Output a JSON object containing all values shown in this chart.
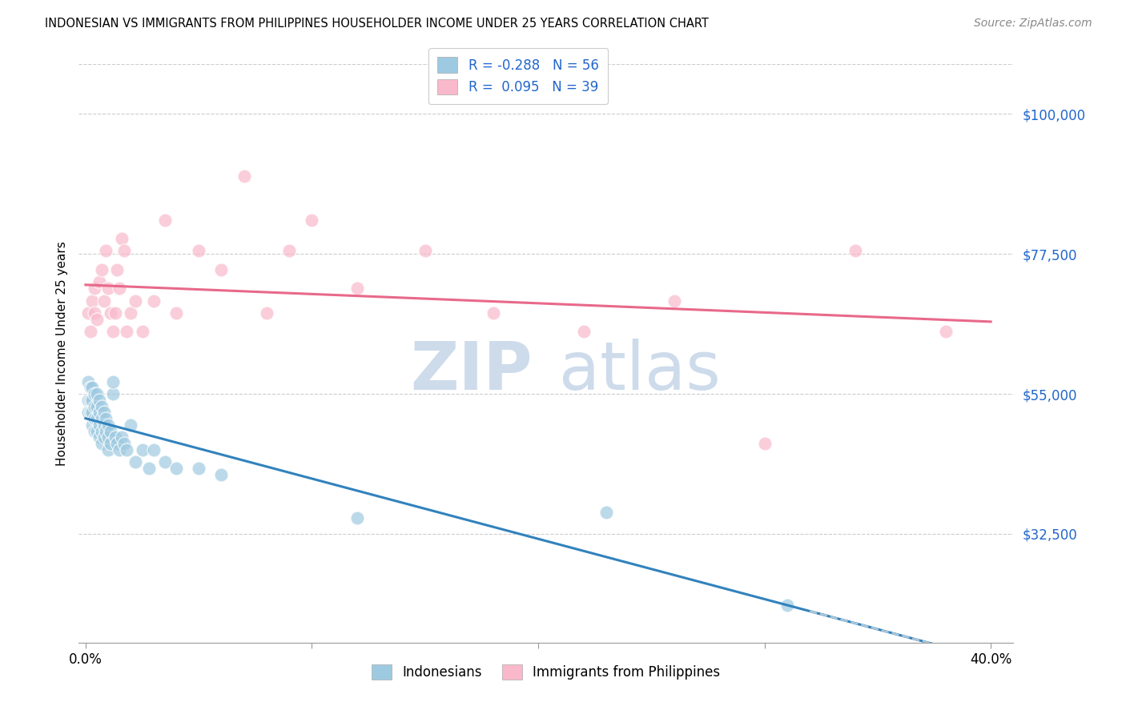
{
  "title": "INDONESIAN VS IMMIGRANTS FROM PHILIPPINES HOUSEHOLDER INCOME UNDER 25 YEARS CORRELATION CHART",
  "source": "Source: ZipAtlas.com",
  "ylabel": "Householder Income Under 25 years",
  "yticks": [
    32500,
    55000,
    77500,
    100000
  ],
  "ytick_labels": [
    "$32,500",
    "$55,000",
    "$77,500",
    "$100,000"
  ],
  "xmin": 0.0,
  "xmax": 0.4,
  "ymin": 15000,
  "ymax": 108000,
  "watermark_zip": "ZIP",
  "watermark_atlas": "atlas",
  "legend_labels": [
    "Indonesians",
    "Immigrants from Philippines"
  ],
  "r_indonesian": -0.288,
  "n_indonesian": 56,
  "r_philippines": 0.095,
  "n_philippines": 39,
  "color_indonesian": "#9ecae1",
  "color_philippines": "#f9b8cb",
  "color_indonesian_line": "#3182bd",
  "color_philippines_line": "#e8698a",
  "color_dashed": "#aec7d8",
  "indonesian_x": [
    0.001,
    0.001,
    0.001,
    0.002,
    0.002,
    0.002,
    0.003,
    0.003,
    0.003,
    0.003,
    0.004,
    0.004,
    0.004,
    0.004,
    0.005,
    0.005,
    0.005,
    0.005,
    0.006,
    0.006,
    0.006,
    0.006,
    0.007,
    0.007,
    0.007,
    0.007,
    0.008,
    0.008,
    0.008,
    0.009,
    0.009,
    0.01,
    0.01,
    0.01,
    0.011,
    0.011,
    0.012,
    0.012,
    0.013,
    0.014,
    0.015,
    0.016,
    0.017,
    0.018,
    0.02,
    0.022,
    0.025,
    0.028,
    0.03,
    0.035,
    0.04,
    0.05,
    0.06,
    0.12,
    0.23,
    0.31
  ],
  "indonesian_y": [
    57000,
    54000,
    52000,
    56000,
    54000,
    52000,
    56000,
    54000,
    52000,
    50000,
    55000,
    53000,
    51000,
    49000,
    55000,
    53000,
    51000,
    49000,
    54000,
    52000,
    50000,
    48000,
    53000,
    51000,
    49000,
    47000,
    52000,
    50000,
    48000,
    51000,
    49000,
    50000,
    48000,
    46000,
    49000,
    47000,
    55000,
    57000,
    48000,
    47000,
    46000,
    48000,
    47000,
    46000,
    50000,
    44000,
    46000,
    43000,
    46000,
    44000,
    43000,
    43000,
    42000,
    35000,
    36000,
    21000
  ],
  "philippines_x": [
    0.001,
    0.002,
    0.003,
    0.004,
    0.004,
    0.005,
    0.006,
    0.007,
    0.008,
    0.009,
    0.01,
    0.011,
    0.012,
    0.013,
    0.014,
    0.015,
    0.016,
    0.017,
    0.018,
    0.02,
    0.022,
    0.025,
    0.03,
    0.035,
    0.04,
    0.05,
    0.06,
    0.07,
    0.08,
    0.09,
    0.1,
    0.12,
    0.15,
    0.18,
    0.22,
    0.26,
    0.3,
    0.34,
    0.38
  ],
  "philippines_y": [
    68000,
    65000,
    70000,
    72000,
    68000,
    67000,
    73000,
    75000,
    70000,
    78000,
    72000,
    68000,
    65000,
    68000,
    75000,
    72000,
    80000,
    78000,
    65000,
    68000,
    70000,
    65000,
    70000,
    83000,
    68000,
    78000,
    75000,
    90000,
    68000,
    78000,
    83000,
    72000,
    78000,
    68000,
    65000,
    70000,
    47000,
    78000,
    65000
  ]
}
